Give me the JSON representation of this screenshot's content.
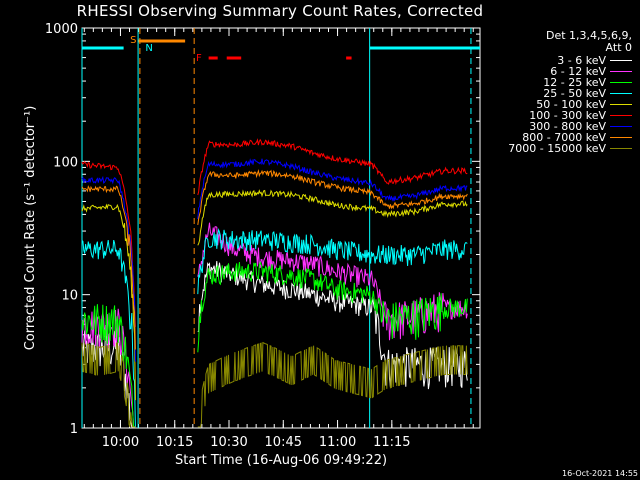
{
  "chart_data": {
    "type": "line",
    "title": "RHESSI Observing Summary Count Rates, Corrected",
    "xlabel": "Start Time (16-Aug-06 09:49:22)",
    "ylabel": "Corrected Count Rate (s⁻¹ detector⁻¹)",
    "x_unit": "minutes after 09:49:22",
    "xlim": [
      0,
      110
    ],
    "ylim": [
      1,
      1000
    ],
    "yscale": "log",
    "x_ticks": [
      "10:00",
      "10:15",
      "10:30",
      "10:45",
      "11:00",
      "11:15"
    ],
    "x_tick_minutes": [
      10.63,
      25.63,
      40.63,
      55.63,
      70.63,
      85.63
    ],
    "y_ticks": [
      "1",
      "10",
      "100",
      "1000"
    ],
    "y_tick_values": [
      1,
      10,
      100,
      1000
    ],
    "detectors": "Det 1,3,4,5,6,9,",
    "attenuator": "Att 0",
    "series": [
      {
        "name": "3 - 6 keV",
        "color": "#ffffff",
        "base": [
          4,
          4,
          4,
          0,
          0,
          16,
          14,
          12,
          11,
          10,
          9,
          8,
          3,
          3,
          3
        ]
      },
      {
        "name": "6 - 12 keV",
        "color": "#ff33ff",
        "base": [
          6,
          6,
          6,
          0,
          0,
          30,
          22,
          19,
          18,
          17,
          15,
          13,
          6.5,
          7,
          8
        ]
      },
      {
        "name": "12 - 25 keV",
        "color": "#00ff00",
        "base": [
          6.5,
          6.5,
          6.5,
          0,
          0,
          14,
          15,
          15,
          14,
          13,
          11,
          10,
          6.5,
          7,
          8
        ]
      },
      {
        "name": "25 - 50 keV",
        "color": "#00ffff",
        "base": [
          22,
          22,
          22,
          0,
          0,
          27,
          26,
          26,
          25,
          24,
          22,
          20,
          20,
          20,
          22
        ]
      },
      {
        "name": "50 - 100 keV",
        "color": "#dddd00",
        "base": [
          44,
          45,
          46,
          0,
          0,
          56,
          57,
          58,
          56,
          52,
          47,
          44,
          40,
          42,
          48
        ]
      },
      {
        "name": "100 - 300 keV",
        "color": "#ff0000",
        "base": [
          95,
          92,
          90,
          0,
          0,
          135,
          133,
          140,
          130,
          115,
          105,
          95,
          70,
          75,
          85
        ]
      },
      {
        "name": "300 - 800 keV",
        "color": "#0000ff",
        "base": [
          72,
          72,
          72,
          0,
          0,
          95,
          95,
          100,
          92,
          82,
          75,
          68,
          52,
          55,
          63
        ]
      },
      {
        "name": "800 - 7000 keV",
        "color": "#ff8800",
        "base": [
          62,
          62,
          62,
          0,
          0,
          80,
          78,
          82,
          78,
          70,
          64,
          58,
          46,
          48,
          55
        ]
      },
      {
        "name": "7000 - 15000 keV",
        "color": "#888800",
        "base": [
          3.8,
          3.5,
          3.8,
          0,
          0,
          2.6,
          3.2,
          3.8,
          3.0,
          3.6,
          2.8,
          2.4,
          2.8,
          3.2,
          3.6
        ]
      }
    ],
    "sample_minutes": [
      0,
      5,
      10,
      15,
      30,
      35,
      42,
      50,
      58,
      64,
      70,
      80,
      84,
      92,
      100
    ],
    "annotations": [
      {
        "text": "S",
        "color": "#ff8800",
        "kind": "saa"
      },
      {
        "text": "N",
        "color": "#00ffff",
        "kind": "night"
      },
      {
        "text": "F",
        "color": "#ff0000",
        "kind": "flare"
      }
    ],
    "status_bars": [
      {
        "kind": "day",
        "color": "#00ffff",
        "x": [
          0,
          11.5
        ]
      },
      {
        "kind": "saa",
        "color": "#ff8800",
        "x": [
          15.5,
          28.5
        ]
      },
      {
        "kind": "day",
        "color": "#00ffff",
        "x": [
          79.5,
          110
        ]
      },
      {
        "kind": "flare",
        "color": "#ff0000",
        "x": [
          35.0,
          37.5
        ]
      },
      {
        "kind": "flare",
        "color": "#ff0000",
        "x": [
          40.0,
          44.0
        ]
      },
      {
        "kind": "flare",
        "color": "#ff0000",
        "x": [
          73.0,
          74.5
        ]
      }
    ],
    "vlines": [
      {
        "x": 15.5,
        "color": "#00ffff",
        "style": "solid"
      },
      {
        "x": 16.0,
        "color": "#ff8800",
        "style": "dashed"
      },
      {
        "x": 31.0,
        "color": "#ff8800",
        "style": "dashed"
      },
      {
        "x": 79.5,
        "color": "#00ffff",
        "style": "solid"
      },
      {
        "x": 107.5,
        "color": "#00ffff",
        "style": "dashed"
      },
      {
        "x": 0,
        "color": "#00ffff",
        "style": "solid"
      }
    ],
    "gap_minutes": [
      16,
      31
    ]
  },
  "stamp": "16-Oct-2021 14:55"
}
